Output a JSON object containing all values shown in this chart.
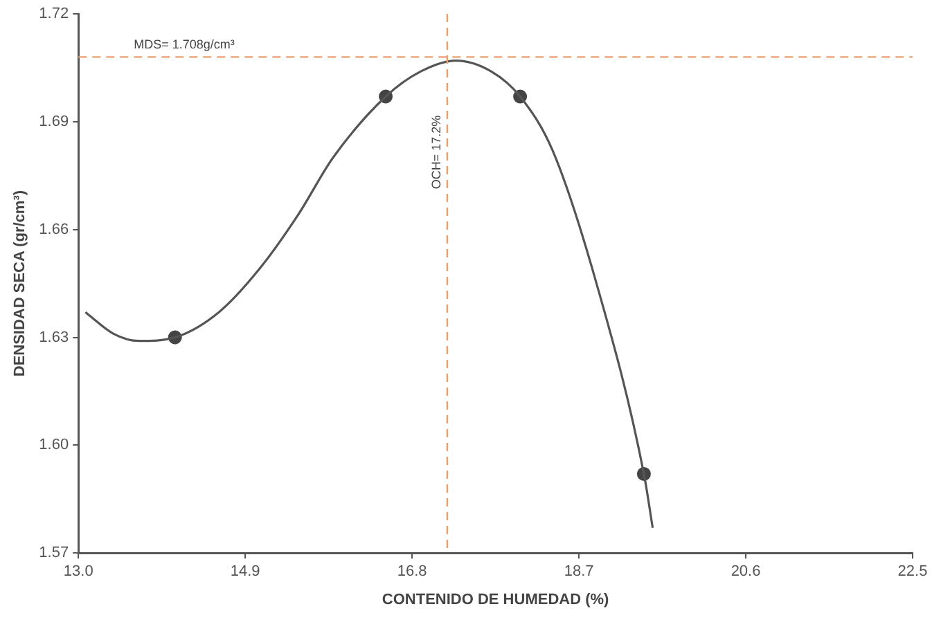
{
  "chart_data": {
    "type": "line",
    "xlabel": "CONTENIDO DE HUMEDAD (%)",
    "ylabel": "DENSIDAD SECA (gr/cm³)",
    "xlim": [
      13.0,
      22.5
    ],
    "xticks": [
      {
        "value": 13.0,
        "label": "13.0"
      },
      14.9,
      16.8,
      18.7,
      20.6,
      22.5
    ],
    "ylim": [
      1.57,
      1.72
    ],
    "yticks": [
      1.57,
      {
        "value": 1.6,
        "label": "1.60"
      },
      1.63,
      1.66,
      1.69,
      1.72
    ],
    "grid": false,
    "legend": false,
    "series": [
      {
        "type": "line",
        "color": "#555555",
        "marker": "none",
        "x": [
          13.08,
          13.4,
          13.69,
          14.1,
          14.6,
          15.06,
          15.5,
          15.9,
          16.5,
          16.9,
          17.3,
          17.7,
          18.03,
          18.4,
          18.9,
          19.44,
          19.54
        ],
        "values": [
          1.637,
          1.631,
          1.629,
          1.63,
          1.637,
          1.649,
          1.664,
          1.68,
          1.697,
          1.704,
          1.707,
          1.704,
          1.697,
          1.682,
          1.645,
          1.592,
          1.577
        ]
      },
      {
        "type": "scatter",
        "color": "#444444",
        "marker": "circle",
        "x": [
          14.1,
          16.5,
          18.03,
          19.44
        ],
        "values": [
          1.63,
          1.697,
          1.697,
          1.592
        ]
      }
    ],
    "ref_lines": [
      {
        "axis": "y",
        "value": 1.708,
        "label": "MDS= 1.708g/cm³",
        "color": "#e8a070",
        "line_style": "dashed"
      },
      {
        "axis": "x",
        "value": 17.2,
        "label": "OCH= 17.2%",
        "color": "#e8a070",
        "line_style": "dashed"
      }
    ]
  }
}
